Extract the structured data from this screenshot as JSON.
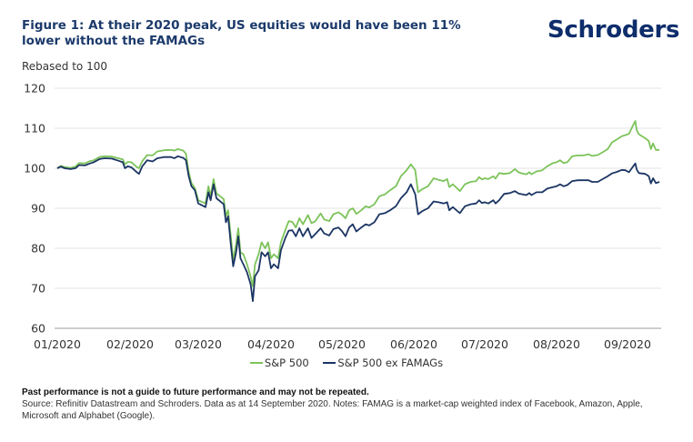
{
  "header": {
    "title": "Figure 1: At their 2020 peak, US equities would have been 11% lower without the FAMAGs",
    "logo": "Schroders"
  },
  "footer": {
    "disclaimer": "Past performance is not a guide to future performance and may not be repeated.",
    "source": "Source: Refinitiv Datastream and Schroders. Data as at 14 September 2020. Notes: FAMAG is a market-cap weighted index of Facebook, Amazon, Apple, Microsoft and Alphabet (Google)."
  },
  "colors": {
    "sp500": "#7cc35a",
    "sp500_ex": "#1b3563",
    "grid": "#e3e3e3",
    "axis": "#bdbdbd"
  },
  "chart_data": {
    "type": "line",
    "title": "Figure 1: At their 2020 peak, US equities would have been 11% lower without the FAMAGs",
    "ylabel": "Rebased to 100",
    "xlabel": "",
    "ylim": [
      60,
      120
    ],
    "yticks": [
      "60",
      "70",
      "80",
      "90",
      "100",
      "110",
      "120"
    ],
    "xticks": [
      "01/2020",
      "02/2020",
      "03/2020",
      "04/2020",
      "05/2020",
      "06/2020",
      "07/2020",
      "08/2020",
      "09/2020"
    ],
    "x_unit": "month index (0 = start of Jan 2020)",
    "xlim": [
      0,
      8.45
    ],
    "grid": true,
    "legend_position": "bottom",
    "series": [
      {
        "name": "S&P 500",
        "color": "#7cc35a",
        "points": [
          [
            0.0,
            100.0
          ],
          [
            0.05,
            100.6
          ],
          [
            0.1,
            100.3
          ],
          [
            0.18,
            100.1
          ],
          [
            0.25,
            100.4
          ],
          [
            0.3,
            101.3
          ],
          [
            0.38,
            101.2
          ],
          [
            0.45,
            101.8
          ],
          [
            0.5,
            102.0
          ],
          [
            0.58,
            102.8
          ],
          [
            0.65,
            103.0
          ],
          [
            0.75,
            102.9
          ],
          [
            0.82,
            102.6
          ],
          [
            0.9,
            102.2
          ],
          [
            0.93,
            101.0
          ],
          [
            0.97,
            101.6
          ],
          [
            1.02,
            101.5
          ],
          [
            1.1,
            100.3
          ],
          [
            1.13,
            100.0
          ],
          [
            1.18,
            101.8
          ],
          [
            1.25,
            103.3
          ],
          [
            1.33,
            103.2
          ],
          [
            1.4,
            104.2
          ],
          [
            1.5,
            104.5
          ],
          [
            1.6,
            104.6
          ],
          [
            1.65,
            104.4
          ],
          [
            1.7,
            104.8
          ],
          [
            1.78,
            104.4
          ],
          [
            1.82,
            103.6
          ],
          [
            1.86,
            99.0
          ],
          [
            1.9,
            96.3
          ],
          [
            1.95,
            95.0
          ],
          [
            2.0,
            92.0
          ],
          [
            2.1,
            91.2
          ],
          [
            2.14,
            95.5
          ],
          [
            2.17,
            93.0
          ],
          [
            2.21,
            97.3
          ],
          [
            2.25,
            93.7
          ],
          [
            2.35,
            92.3
          ],
          [
            2.38,
            88.0
          ],
          [
            2.41,
            89.5
          ],
          [
            2.45,
            82.5
          ],
          [
            2.48,
            77.0
          ],
          [
            2.52,
            81.0
          ],
          [
            2.55,
            85.0
          ],
          [
            2.58,
            79.0
          ],
          [
            2.62,
            78.5
          ],
          [
            2.67,
            76.0
          ],
          [
            2.72,
            73.0
          ],
          [
            2.75,
            70.5
          ],
          [
            2.78,
            76.0
          ],
          [
            2.83,
            78.5
          ],
          [
            2.87,
            81.5
          ],
          [
            2.92,
            80.0
          ],
          [
            2.96,
            81.5
          ],
          [
            3.0,
            77.5
          ],
          [
            3.04,
            78.5
          ],
          [
            3.1,
            77.5
          ],
          [
            3.14,
            81.5
          ],
          [
            3.2,
            84.5
          ],
          [
            3.25,
            86.8
          ],
          [
            3.3,
            86.6
          ],
          [
            3.35,
            85.2
          ],
          [
            3.4,
            87.5
          ],
          [
            3.45,
            86.0
          ],
          [
            3.52,
            88.3
          ],
          [
            3.57,
            86.3
          ],
          [
            3.62,
            86.7
          ],
          [
            3.7,
            88.7
          ],
          [
            3.75,
            87.2
          ],
          [
            3.82,
            86.8
          ],
          [
            3.88,
            88.5
          ],
          [
            3.95,
            89.0
          ],
          [
            4.0,
            88.4
          ],
          [
            4.05,
            87.5
          ],
          [
            4.1,
            89.5
          ],
          [
            4.15,
            90.0
          ],
          [
            4.2,
            88.6
          ],
          [
            4.27,
            89.5
          ],
          [
            4.33,
            90.5
          ],
          [
            4.38,
            90.2
          ],
          [
            4.45,
            91.0
          ],
          [
            4.52,
            93.0
          ],
          [
            4.6,
            93.5
          ],
          [
            4.67,
            94.5
          ],
          [
            4.75,
            95.5
          ],
          [
            4.82,
            98.0
          ],
          [
            4.9,
            99.5
          ],
          [
            4.96,
            101.0
          ],
          [
            5.02,
            99.5
          ],
          [
            5.06,
            94.0
          ],
          [
            5.12,
            94.8
          ],
          [
            5.2,
            95.5
          ],
          [
            5.28,
            97.5
          ],
          [
            5.35,
            97.1
          ],
          [
            5.42,
            96.8
          ],
          [
            5.47,
            97.3
          ],
          [
            5.5,
            95.3
          ],
          [
            5.55,
            96.0
          ],
          [
            5.62,
            94.8
          ],
          [
            5.65,
            94.3
          ],
          [
            5.72,
            96.0
          ],
          [
            5.8,
            96.6
          ],
          [
            5.88,
            96.8
          ],
          [
            5.92,
            97.8
          ],
          [
            5.96,
            97.2
          ],
          [
            6.0,
            97.5
          ],
          [
            6.05,
            97.3
          ],
          [
            6.12,
            98.0
          ],
          [
            6.15,
            97.4
          ],
          [
            6.2,
            98.8
          ],
          [
            6.27,
            98.6
          ],
          [
            6.35,
            98.8
          ],
          [
            6.42,
            99.8
          ],
          [
            6.47,
            99.0
          ],
          [
            6.52,
            98.7
          ],
          [
            6.58,
            98.5
          ],
          [
            6.62,
            99.0
          ],
          [
            6.65,
            98.5
          ],
          [
            6.72,
            99.2
          ],
          [
            6.8,
            99.5
          ],
          [
            6.87,
            100.5
          ],
          [
            6.95,
            101.3
          ],
          [
            7.0,
            101.5
          ],
          [
            7.05,
            102.0
          ],
          [
            7.1,
            101.3
          ],
          [
            7.15,
            101.5
          ],
          [
            7.22,
            103.0
          ],
          [
            7.3,
            103.2
          ],
          [
            7.38,
            103.2
          ],
          [
            7.45,
            103.5
          ],
          [
            7.5,
            103.1
          ],
          [
            7.58,
            103.3
          ],
          [
            7.65,
            104.0
          ],
          [
            7.72,
            104.8
          ],
          [
            7.78,
            106.4
          ],
          [
            7.85,
            107.2
          ],
          [
            7.92,
            108.0
          ],
          [
            7.97,
            108.3
          ],
          [
            8.02,
            108.6
          ],
          [
            8.06,
            110.1
          ],
          [
            8.11,
            111.8
          ],
          [
            8.13,
            109.5
          ],
          [
            8.16,
            108.5
          ],
          [
            8.25,
            107.5
          ],
          [
            8.3,
            106.8
          ],
          [
            8.33,
            104.8
          ],
          [
            8.36,
            106.2
          ],
          [
            8.4,
            104.6
          ],
          [
            8.45,
            104.6
          ]
        ]
      },
      {
        "name": "S&P 500 ex FAMAGs",
        "color": "#1b3563",
        "points": [
          [
            0.0,
            100.0
          ],
          [
            0.05,
            100.4
          ],
          [
            0.1,
            100.0
          ],
          [
            0.18,
            99.8
          ],
          [
            0.25,
            100.0
          ],
          [
            0.3,
            100.8
          ],
          [
            0.38,
            100.7
          ],
          [
            0.45,
            101.2
          ],
          [
            0.5,
            101.5
          ],
          [
            0.58,
            102.3
          ],
          [
            0.65,
            102.5
          ],
          [
            0.75,
            102.4
          ],
          [
            0.82,
            102.0
          ],
          [
            0.9,
            101.5
          ],
          [
            0.93,
            100.0
          ],
          [
            0.97,
            100.5
          ],
          [
            1.02,
            100.2
          ],
          [
            1.1,
            99.0
          ],
          [
            1.13,
            98.6
          ],
          [
            1.18,
            100.5
          ],
          [
            1.25,
            102.0
          ],
          [
            1.33,
            101.7
          ],
          [
            1.4,
            102.5
          ],
          [
            1.5,
            102.8
          ],
          [
            1.6,
            102.8
          ],
          [
            1.65,
            102.5
          ],
          [
            1.7,
            103.0
          ],
          [
            1.78,
            102.6
          ],
          [
            1.82,
            102.0
          ],
          [
            1.86,
            98.0
          ],
          [
            1.9,
            95.5
          ],
          [
            1.95,
            94.5
          ],
          [
            2.0,
            91.2
          ],
          [
            2.1,
            90.3
          ],
          [
            2.14,
            94.0
          ],
          [
            2.17,
            92.0
          ],
          [
            2.21,
            96.0
          ],
          [
            2.25,
            92.5
          ],
          [
            2.35,
            91.0
          ],
          [
            2.38,
            86.5
          ],
          [
            2.41,
            88.0
          ],
          [
            2.45,
            80.5
          ],
          [
            2.48,
            75.5
          ],
          [
            2.52,
            79.0
          ],
          [
            2.55,
            83.0
          ],
          [
            2.58,
            77.5
          ],
          [
            2.62,
            76.0
          ],
          [
            2.67,
            74.0
          ],
          [
            2.72,
            71.0
          ],
          [
            2.75,
            66.8
          ],
          [
            2.78,
            73.0
          ],
          [
            2.83,
            74.5
          ],
          [
            2.87,
            79.0
          ],
          [
            2.92,
            78.0
          ],
          [
            2.96,
            79.0
          ],
          [
            3.0,
            75.0
          ],
          [
            3.04,
            76.0
          ],
          [
            3.1,
            75.0
          ],
          [
            3.14,
            79.5
          ],
          [
            3.2,
            82.5
          ],
          [
            3.25,
            84.4
          ],
          [
            3.3,
            84.5
          ],
          [
            3.35,
            83.0
          ],
          [
            3.4,
            85.0
          ],
          [
            3.45,
            83.0
          ],
          [
            3.52,
            85.0
          ],
          [
            3.57,
            82.6
          ],
          [
            3.62,
            83.5
          ],
          [
            3.7,
            85.0
          ],
          [
            3.75,
            83.7
          ],
          [
            3.82,
            83.2
          ],
          [
            3.88,
            84.8
          ],
          [
            3.95,
            85.2
          ],
          [
            4.0,
            84.3
          ],
          [
            4.05,
            83.0
          ],
          [
            4.1,
            85.2
          ],
          [
            4.15,
            86.0
          ],
          [
            4.2,
            84.2
          ],
          [
            4.27,
            85.2
          ],
          [
            4.33,
            86.0
          ],
          [
            4.38,
            85.7
          ],
          [
            4.45,
            86.5
          ],
          [
            4.52,
            88.5
          ],
          [
            4.6,
            88.8
          ],
          [
            4.67,
            89.5
          ],
          [
            4.75,
            90.5
          ],
          [
            4.82,
            92.5
          ],
          [
            4.9,
            94.0
          ],
          [
            4.96,
            96.0
          ],
          [
            5.02,
            93.5
          ],
          [
            5.06,
            88.5
          ],
          [
            5.12,
            89.3
          ],
          [
            5.2,
            90.0
          ],
          [
            5.28,
            91.7
          ],
          [
            5.35,
            91.5
          ],
          [
            5.42,
            91.2
          ],
          [
            5.47,
            91.5
          ],
          [
            5.5,
            89.5
          ],
          [
            5.55,
            90.3
          ],
          [
            5.62,
            89.2
          ],
          [
            5.65,
            88.8
          ],
          [
            5.72,
            90.5
          ],
          [
            5.8,
            91.0
          ],
          [
            5.88,
            91.2
          ],
          [
            5.92,
            92.0
          ],
          [
            5.96,
            91.3
          ],
          [
            6.0,
            91.5
          ],
          [
            6.05,
            91.2
          ],
          [
            6.12,
            92.0
          ],
          [
            6.15,
            91.2
          ],
          [
            6.2,
            92.0
          ],
          [
            6.27,
            93.6
          ],
          [
            6.35,
            93.8
          ],
          [
            6.42,
            94.3
          ],
          [
            6.47,
            93.7
          ],
          [
            6.52,
            93.5
          ],
          [
            6.58,
            93.3
          ],
          [
            6.62,
            93.8
          ],
          [
            6.65,
            93.3
          ],
          [
            6.72,
            94.0
          ],
          [
            6.8,
            94.0
          ],
          [
            6.87,
            94.9
          ],
          [
            6.95,
            95.3
          ],
          [
            7.0,
            95.5
          ],
          [
            7.05,
            96.0
          ],
          [
            7.1,
            95.5
          ],
          [
            7.15,
            95.8
          ],
          [
            7.22,
            96.8
          ],
          [
            7.3,
            97.0
          ],
          [
            7.38,
            97.0
          ],
          [
            7.45,
            97.0
          ],
          [
            7.5,
            96.6
          ],
          [
            7.58,
            96.6
          ],
          [
            7.65,
            97.3
          ],
          [
            7.72,
            98.0
          ],
          [
            7.78,
            98.7
          ],
          [
            7.85,
            99.1
          ],
          [
            7.92,
            99.6
          ],
          [
            7.97,
            99.5
          ],
          [
            8.02,
            99.0
          ],
          [
            8.06,
            100.0
          ],
          [
            8.11,
            101.2
          ],
          [
            8.13,
            99.7
          ],
          [
            8.16,
            98.8
          ],
          [
            8.25,
            98.6
          ],
          [
            8.3,
            98.0
          ],
          [
            8.33,
            96.2
          ],
          [
            8.36,
            97.5
          ],
          [
            8.4,
            96.3
          ],
          [
            8.45,
            96.6
          ]
        ]
      }
    ]
  }
}
